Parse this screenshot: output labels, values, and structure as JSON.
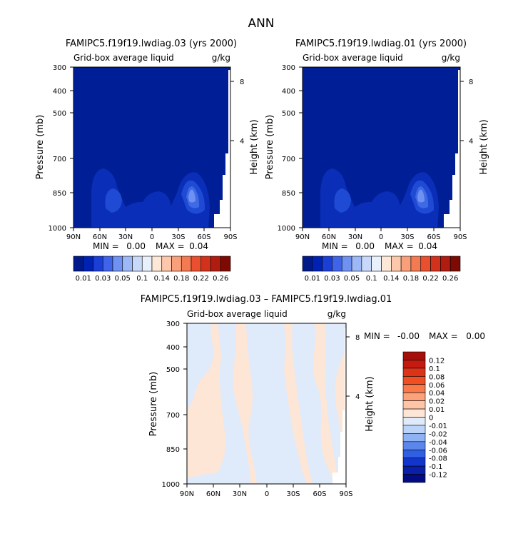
{
  "page_title": "ANN",
  "chart_data": [
    {
      "type": "heatmap",
      "title": "FAMIPC5.f19f19.lwdiag.03 (yrs 2000)",
      "subtitle_left": "Grid-box average liquid",
      "subtitle_right": "g/kg",
      "ylabel": "Pressure (mb)",
      "ylabel_right": "Height (km)",
      "x_ticks": [
        "90N",
        "60N",
        "30N",
        "0",
        "30S",
        "60S",
        "90S"
      ],
      "y_ticks": [
        "300",
        "400",
        "500",
        "700",
        "850",
        "1000"
      ],
      "y_right_ticks": [
        "8",
        "4"
      ],
      "ylim": [
        1000,
        300
      ],
      "stats": {
        "min_label": "MIN =",
        "min": "0.00",
        "max_label": "MAX =",
        "max": "0.04"
      },
      "colorbar": {
        "labels": [
          "0.01",
          "0.03",
          "0.05",
          "0.1",
          "0.14",
          "0.18",
          "0.22",
          "0.26"
        ],
        "colors": [
          "#001a8a",
          "#0022b4",
          "#1a3ed6",
          "#3f64ea",
          "#6f92f2",
          "#9db8f6",
          "#c8d8f9",
          "#e8f0fb",
          "#fde8d8",
          "#fcc7aa",
          "#f9a07a",
          "#f47a52",
          "#ea5030",
          "#d2321c",
          "#b01c10",
          "#7e0a04"
        ]
      }
    },
    {
      "type": "heatmap",
      "title": "FAMIPC5.f19f19.lwdiag.01 (yrs 2000)",
      "subtitle_left": "Grid-box average liquid",
      "subtitle_right": "g/kg",
      "ylabel": "Pressure (mb)",
      "ylabel_right": "Height (km)",
      "x_ticks": [
        "90N",
        "60N",
        "30N",
        "0",
        "30S",
        "60S",
        "90S"
      ],
      "y_ticks": [
        "300",
        "400",
        "500",
        "700",
        "850",
        "1000"
      ],
      "y_right_ticks": [
        "8",
        "4"
      ],
      "ylim": [
        1000,
        300
      ],
      "stats": {
        "min_label": "MIN =",
        "min": "0.00",
        "max_label": "MAX =",
        "max": "0.04"
      },
      "colorbar": {
        "labels": [
          "0.01",
          "0.03",
          "0.05",
          "0.1",
          "0.14",
          "0.18",
          "0.22",
          "0.26"
        ],
        "colors": [
          "#001a8a",
          "#0022b4",
          "#1a3ed6",
          "#3f64ea",
          "#6f92f2",
          "#9db8f6",
          "#c8d8f9",
          "#e8f0fb",
          "#fde8d8",
          "#fcc7aa",
          "#f9a07a",
          "#f47a52",
          "#ea5030",
          "#d2321c",
          "#b01c10",
          "#7e0a04"
        ]
      }
    },
    {
      "type": "heatmap",
      "title": "FAMIPC5.f19f19.lwdiag.03 – FAMIPC5.f19f19.lwdiag.01",
      "subtitle_left": "Grid-box average liquid",
      "subtitle_right": "g/kg",
      "ylabel": "Pressure (mb)",
      "ylabel_right": "Height (km)",
      "x_ticks": [
        "90N",
        "60N",
        "30N",
        "0",
        "30S",
        "60S",
        "90S"
      ],
      "y_ticks": [
        "300",
        "400",
        "500",
        "700",
        "850",
        "1000"
      ],
      "y_right_ticks": [
        "8",
        "4"
      ],
      "ylim": [
        1000,
        300
      ],
      "stats": {
        "min_label": "MIN =",
        "min": "-0.00",
        "max_label": "MAX =",
        "max": "0.00"
      },
      "colorbar": {
        "labels": [
          "0.12",
          "0.1",
          "0.08",
          "0.06",
          "0.04",
          "0.02",
          "0.01",
          "0",
          "-0.01",
          "-0.02",
          "-0.04",
          "-0.06",
          "-0.08",
          "-0.1",
          "-0.12"
        ],
        "colors": [
          "#a50f0a",
          "#c41a10",
          "#dd3318",
          "#f04f24",
          "#f97a48",
          "#fca27a",
          "#fdc4a6",
          "#fde6d6",
          "#dfeafb",
          "#bcd3f8",
          "#8fb2f3",
          "#5b87ec",
          "#2f5fe2",
          "#1236cc",
          "#0a1ea8",
          "#030b82"
        ]
      }
    }
  ]
}
